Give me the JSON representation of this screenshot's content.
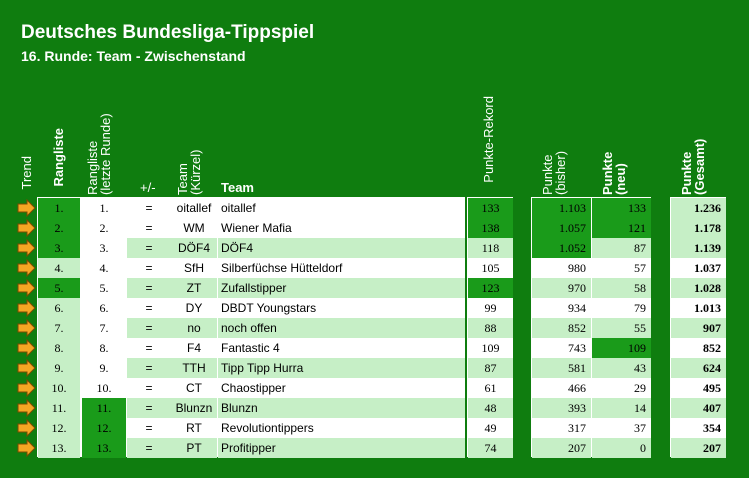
{
  "title": "Deutsches Bundesliga-Tippspiel",
  "subtitle": "16. Runde: Team - Zwischenstand",
  "headers": {
    "trend": "Trend",
    "rangliste": "Rangliste",
    "rangliste_letzte": "Rangliste (letzte Runde)",
    "plusminus": "+/-",
    "team_kuerzel": "Team (Kürzel)",
    "team": "Team",
    "rekord": "Punkte-Rekord",
    "bisher": "Punkte (bisher)",
    "neu": "Punkte (neu)",
    "gesamt": "Punkte (Gesamt)"
  },
  "rows": [
    {
      "rank": "1.",
      "last": "1.",
      "pm": "=",
      "short": "oitallef",
      "team": "oitallef",
      "rekord": "133",
      "bisher": "1.103",
      "neu": "133",
      "gesamt": "1.236"
    },
    {
      "rank": "2.",
      "last": "2.",
      "pm": "=",
      "short": "WM",
      "team": "Wiener Mafia",
      "rekord": "138",
      "bisher": "1.057",
      "neu": "121",
      "gesamt": "1.178"
    },
    {
      "rank": "3.",
      "last": "3.",
      "pm": "=",
      "short": "DÖF4",
      "team": "DÖF4",
      "rekord": "118",
      "bisher": "1.052",
      "neu": "87",
      "gesamt": "1.139"
    },
    {
      "rank": "4.",
      "last": "4.",
      "pm": "=",
      "short": "SfH",
      "team": "Silberfüchse Hütteldorf",
      "rekord": "105",
      "bisher": "980",
      "neu": "57",
      "gesamt": "1.037"
    },
    {
      "rank": "5.",
      "last": "5.",
      "pm": "=",
      "short": "ZT",
      "team": "Zufallstipper",
      "rekord": "123",
      "bisher": "970",
      "neu": "58",
      "gesamt": "1.028"
    },
    {
      "rank": "6.",
      "last": "6.",
      "pm": "=",
      "short": "DY",
      "team": "DBDT Youngstars",
      "rekord": "99",
      "bisher": "934",
      "neu": "79",
      "gesamt": "1.013"
    },
    {
      "rank": "7.",
      "last": "7.",
      "pm": "=",
      "short": "no",
      "team": "noch offen",
      "rekord": "88",
      "bisher": "852",
      "neu": "55",
      "gesamt": "907"
    },
    {
      "rank": "8.",
      "last": "8.",
      "pm": "=",
      "short": "F4",
      "team": "Fantastic 4",
      "rekord": "109",
      "bisher": "743",
      "neu": "109",
      "gesamt": "852"
    },
    {
      "rank": "9.",
      "last": "9.",
      "pm": "=",
      "short": "TTH",
      "team": "Tipp Tipp Hurra",
      "rekord": "87",
      "bisher": "581",
      "neu": "43",
      "gesamt": "624"
    },
    {
      "rank": "10.",
      "last": "10.",
      "pm": "=",
      "short": "CT",
      "team": "Chaostipper",
      "rekord": "61",
      "bisher": "466",
      "neu": "29",
      "gesamt": "495"
    },
    {
      "rank": "11.",
      "last": "11.",
      "pm": "=",
      "short": "Blunzn",
      "team": "Blunzn",
      "rekord": "48",
      "bisher": "393",
      "neu": "14",
      "gesamt": "407"
    },
    {
      "rank": "12.",
      "last": "12.",
      "pm": "=",
      "short": "RT",
      "team": "Revolutiontippers",
      "rekord": "49",
      "bisher": "317",
      "neu": "37",
      "gesamt": "354"
    },
    {
      "rank": "13.",
      "last": "13.",
      "pm": "=",
      "short": "PT",
      "team": "Profitipper",
      "rekord": "74",
      "bisher": "207",
      "neu": "0",
      "gesamt": "207"
    }
  ],
  "colors": {
    "background": "#0f7d0f",
    "highlight": "#1a9b1a",
    "light_row": "#c6efc6",
    "arrow": "#f5a623"
  },
  "icons": {
    "trend": "arrow-right-icon"
  }
}
